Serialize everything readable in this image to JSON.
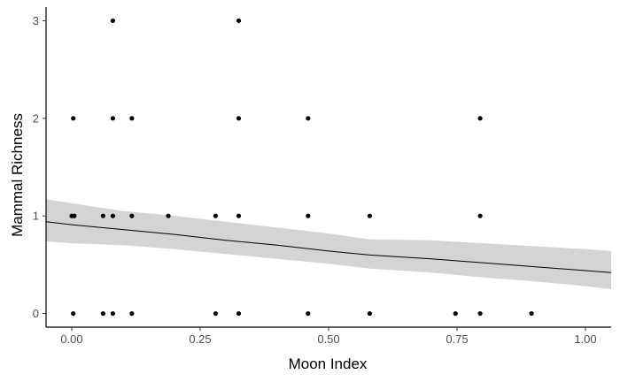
{
  "chart_data": {
    "type": "scatter",
    "title": "",
    "xlabel": "Moon Index",
    "ylabel": "Mammal Richness",
    "xlim": [
      -0.05,
      1.05
    ],
    "ylim": [
      -0.14,
      3.14
    ],
    "x_ticks": [
      0.0,
      0.25,
      0.5,
      0.75,
      1.0
    ],
    "x_tick_labels": [
      "0.00",
      "0.25",
      "0.50",
      "0.75",
      "1.00"
    ],
    "y_ticks": [
      0,
      1,
      2,
      3
    ],
    "y_tick_labels": [
      "0",
      "1",
      "2",
      "3"
    ],
    "grid": false,
    "legend": "none",
    "points": [
      {
        "x": 0.08,
        "y": 3
      },
      {
        "x": 0.325,
        "y": 3
      },
      {
        "x": 0.003,
        "y": 2
      },
      {
        "x": 0.08,
        "y": 2
      },
      {
        "x": 0.117,
        "y": 2
      },
      {
        "x": 0.325,
        "y": 2
      },
      {
        "x": 0.46,
        "y": 2
      },
      {
        "x": 0.795,
        "y": 2
      },
      {
        "x": 0.0,
        "y": 1
      },
      {
        "x": 0.005,
        "y": 1
      },
      {
        "x": 0.061,
        "y": 1
      },
      {
        "x": 0.08,
        "y": 1
      },
      {
        "x": 0.117,
        "y": 1
      },
      {
        "x": 0.188,
        "y": 1
      },
      {
        "x": 0.28,
        "y": 1
      },
      {
        "x": 0.325,
        "y": 1
      },
      {
        "x": 0.46,
        "y": 1
      },
      {
        "x": 0.58,
        "y": 1
      },
      {
        "x": 0.795,
        "y": 1
      },
      {
        "x": 0.003,
        "y": 0
      },
      {
        "x": 0.061,
        "y": 0
      },
      {
        "x": 0.08,
        "y": 0
      },
      {
        "x": 0.117,
        "y": 0
      },
      {
        "x": 0.28,
        "y": 0
      },
      {
        "x": 0.325,
        "y": 0
      },
      {
        "x": 0.46,
        "y": 0
      },
      {
        "x": 0.58,
        "y": 0
      },
      {
        "x": 0.747,
        "y": 0
      },
      {
        "x": 0.795,
        "y": 0
      },
      {
        "x": 0.895,
        "y": 0
      }
    ],
    "trend_line": {
      "x": [
        -0.05,
        0.0,
        0.1,
        0.2,
        0.3,
        0.4,
        0.5,
        0.58,
        0.7,
        0.8,
        0.9,
        1.0,
        1.05
      ],
      "y": [
        0.94,
        0.91,
        0.86,
        0.81,
        0.75,
        0.7,
        0.64,
        0.6,
        0.56,
        0.52,
        0.48,
        0.44,
        0.42
      ],
      "lower": [
        0.74,
        0.72,
        0.7,
        0.66,
        0.61,
        0.56,
        0.51,
        0.46,
        0.42,
        0.37,
        0.33,
        0.28,
        0.25
      ],
      "upper": [
        1.17,
        1.13,
        1.05,
        1.0,
        0.94,
        0.88,
        0.82,
        0.76,
        0.75,
        0.72,
        0.69,
        0.66,
        0.64
      ]
    },
    "colors": {
      "points": "#000000",
      "line": "#000000",
      "ribbon": "#d4d4d4",
      "axis": "#000000"
    }
  }
}
